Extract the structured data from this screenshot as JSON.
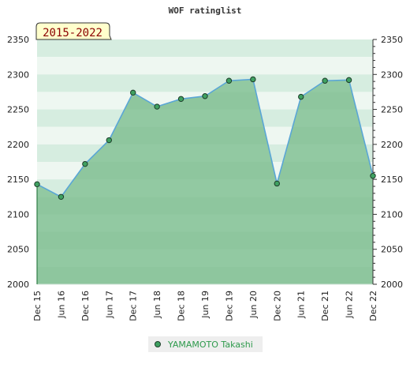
{
  "chart_data": {
    "type": "area",
    "title": "WOF ratinglist",
    "period_label": "2015-2022",
    "xlabel": "",
    "ylabel": "",
    "categories": [
      "Dec 15",
      "Jun 16",
      "Dec 16",
      "Jun 17",
      "Dec 17",
      "Jun 18",
      "Dec 18",
      "Jun 19",
      "Dec 19",
      "Jun 20",
      "Dec 20",
      "Jun 21",
      "Dec 21",
      "Jun 22",
      "Dec 22"
    ],
    "series": [
      {
        "name": "YAMAMOTO Takashi",
        "values": [
          2143,
          2125,
          2172,
          2206,
          2274,
          2254,
          2265,
          2269,
          2291,
          2293,
          2144,
          2268,
          2291,
          2292,
          2155
        ]
      }
    ],
    "ylim": [
      2000,
      2350
    ],
    "yticks": [
      2000,
      2050,
      2100,
      2150,
      2200,
      2250,
      2300,
      2350
    ],
    "y_axes": "left-and-right",
    "legend_position": "bottom-center",
    "grid": true,
    "colors": {
      "line": "#5aa6d6",
      "point_fill": "#3fa161",
      "area_fill": "#3f9e5a",
      "legend_text": "#2e9a4c",
      "title_text": "#333333",
      "badge_fill": "#ffffcc",
      "badge_text": "#8b0000"
    }
  }
}
